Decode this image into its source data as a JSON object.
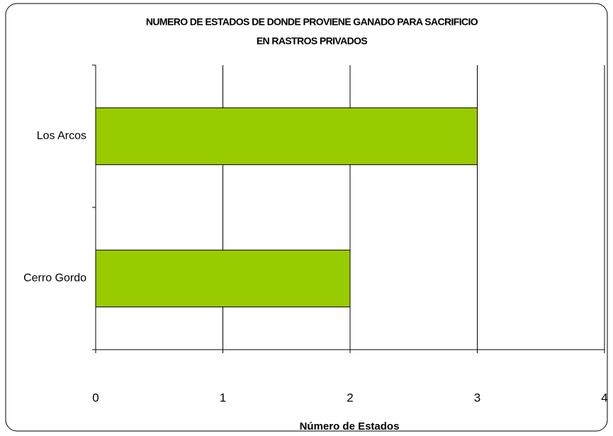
{
  "chart_data": {
    "type": "barh",
    "title": [
      "NUMERO DE ESTADOS DE DONDE PROVIENE GANADO PARA SACRIFICIO",
      "EN RASTROS PRIVADOS"
    ],
    "categories": [
      "Los Arcos",
      "Cerro Gordo"
    ],
    "values": [
      3,
      2
    ],
    "color": "#99cc00",
    "xlabel": "Número de Estados",
    "xlim": [
      0,
      4
    ],
    "xticks": [
      0,
      1,
      2,
      3,
      4
    ],
    "grid": true
  }
}
